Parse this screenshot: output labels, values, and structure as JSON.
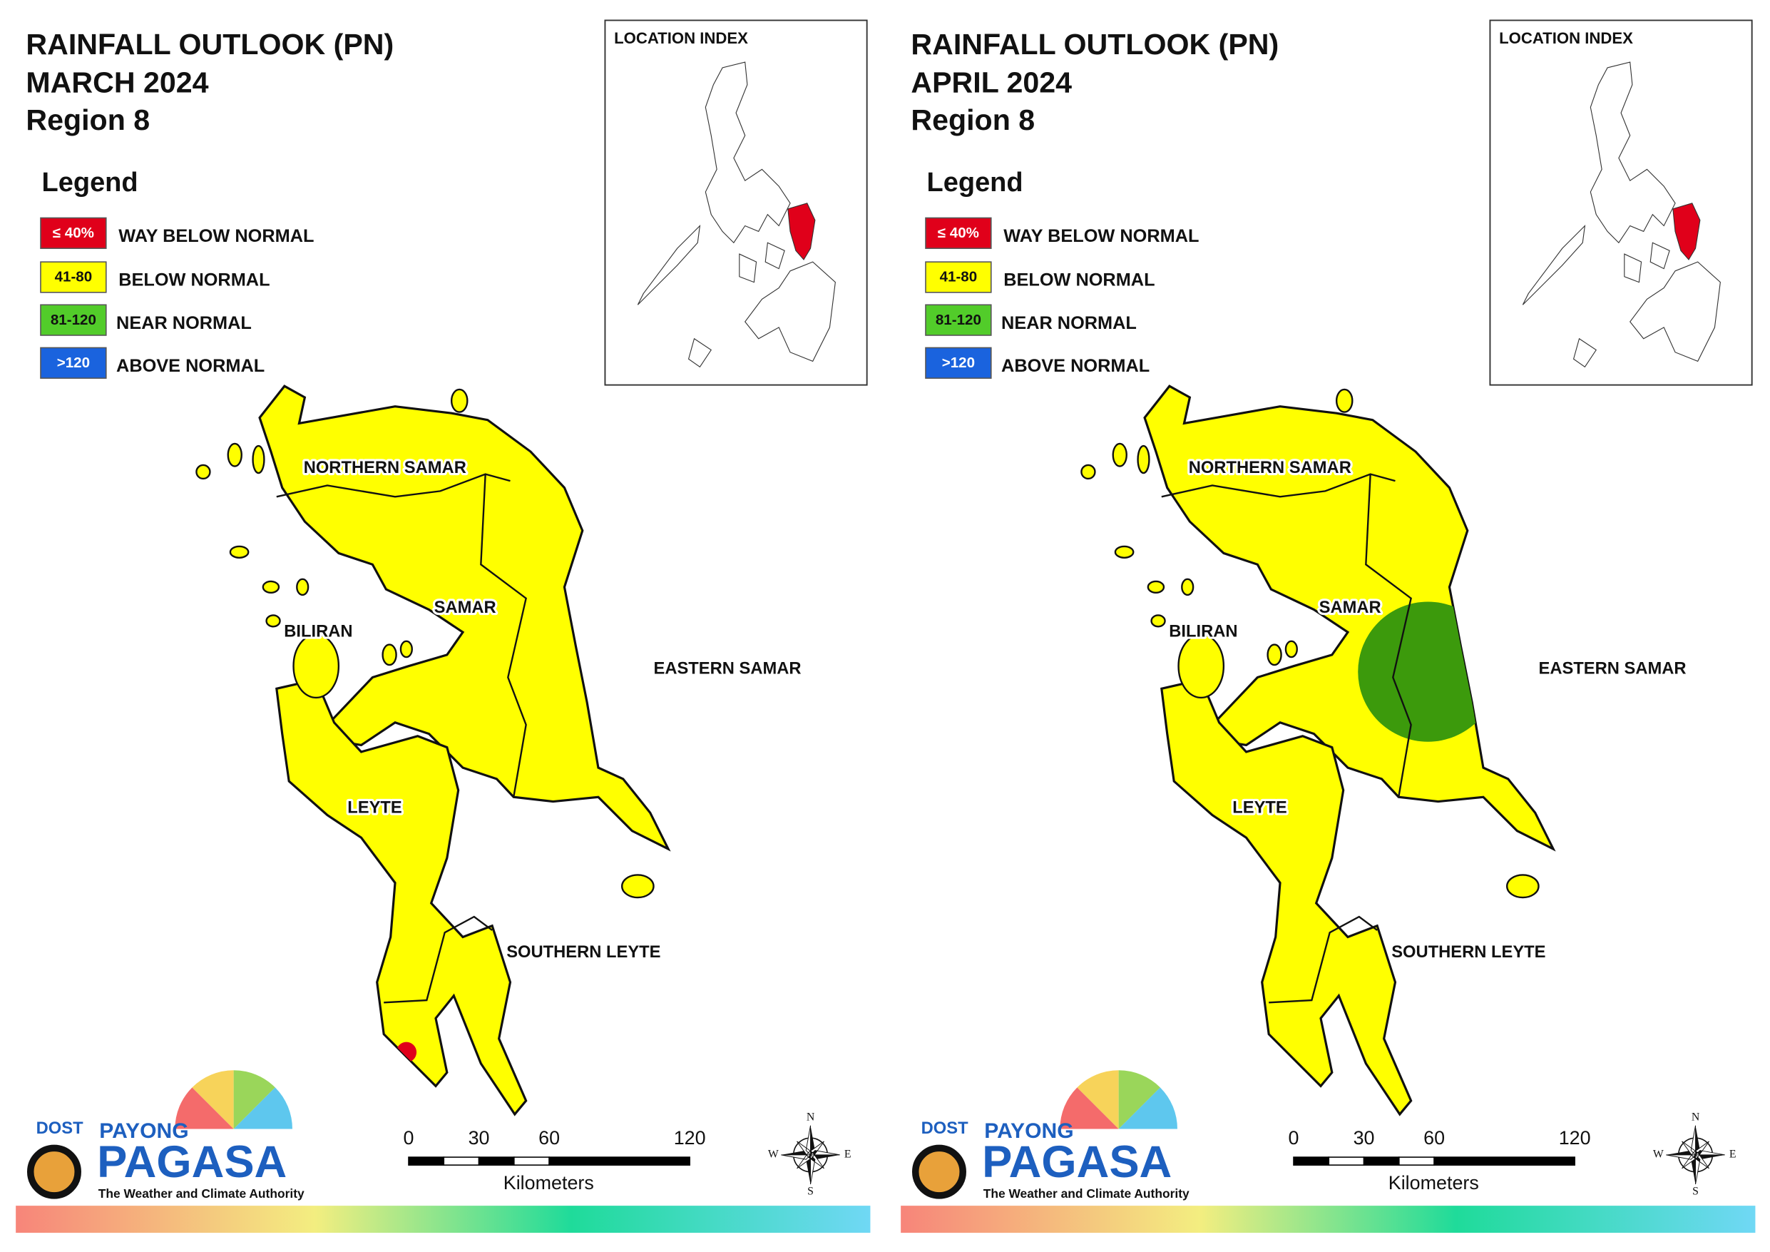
{
  "panels": [
    {
      "title": "RAINFALL OUTLOOK (PN)",
      "period": "MARCH 2024",
      "region": "Region 8",
      "legend": {
        "title": "Legend",
        "items": [
          {
            "swatch": "≤ 40%",
            "label": "WAY BELOW NORMAL"
          },
          {
            "swatch": "41-80",
            "label": "BELOW NORMAL"
          },
          {
            "swatch": "81-120",
            "label": "NEAR NORMAL"
          },
          {
            "swatch": ">120",
            "label": "ABOVE NORMAL"
          }
        ]
      },
      "location_index": "LOCATION INDEX",
      "provinces": [
        "NORTHERN SAMAR",
        "SAMAR",
        "BILIRAN",
        "EASTERN SAMAR",
        "LEYTE",
        "SOUTHERN LEYTE"
      ],
      "scale": {
        "ticks": [
          0,
          30,
          60,
          120
        ],
        "unit": "Kilometers"
      },
      "compass": {
        "n": "N",
        "e": "E",
        "s": "S",
        "w": "W"
      },
      "logo": {
        "agency": "DOST",
        "name_top": "PAYONG",
        "name": "PAGASA",
        "tagline": "The Weather and Climate Authority"
      }
    },
    {
      "title": "RAINFALL OUTLOOK (PN)",
      "period": "APRIL 2024",
      "region": "Region 8",
      "legend": {
        "title": "Legend",
        "items": [
          {
            "swatch": "≤ 40%",
            "label": "WAY BELOW NORMAL"
          },
          {
            "swatch": "41-80",
            "label": "BELOW NORMAL"
          },
          {
            "swatch": "81-120",
            "label": "NEAR NORMAL"
          },
          {
            "swatch": ">120",
            "label": "ABOVE NORMAL"
          }
        ]
      },
      "location_index": "LOCATION INDEX",
      "provinces": [
        "NORTHERN SAMAR",
        "SAMAR",
        "BILIRAN",
        "EASTERN SAMAR",
        "LEYTE",
        "SOUTHERN LEYTE"
      ],
      "scale": {
        "ticks": [
          0,
          30,
          60,
          120
        ],
        "unit": "Kilometers"
      },
      "compass": {
        "n": "N",
        "e": "E",
        "s": "S",
        "w": "W"
      },
      "logo": {
        "agency": "DOST",
        "name_top": "PAYONG",
        "name": "PAGASA",
        "tagline": "The Weather and Climate Authority"
      }
    }
  ]
}
